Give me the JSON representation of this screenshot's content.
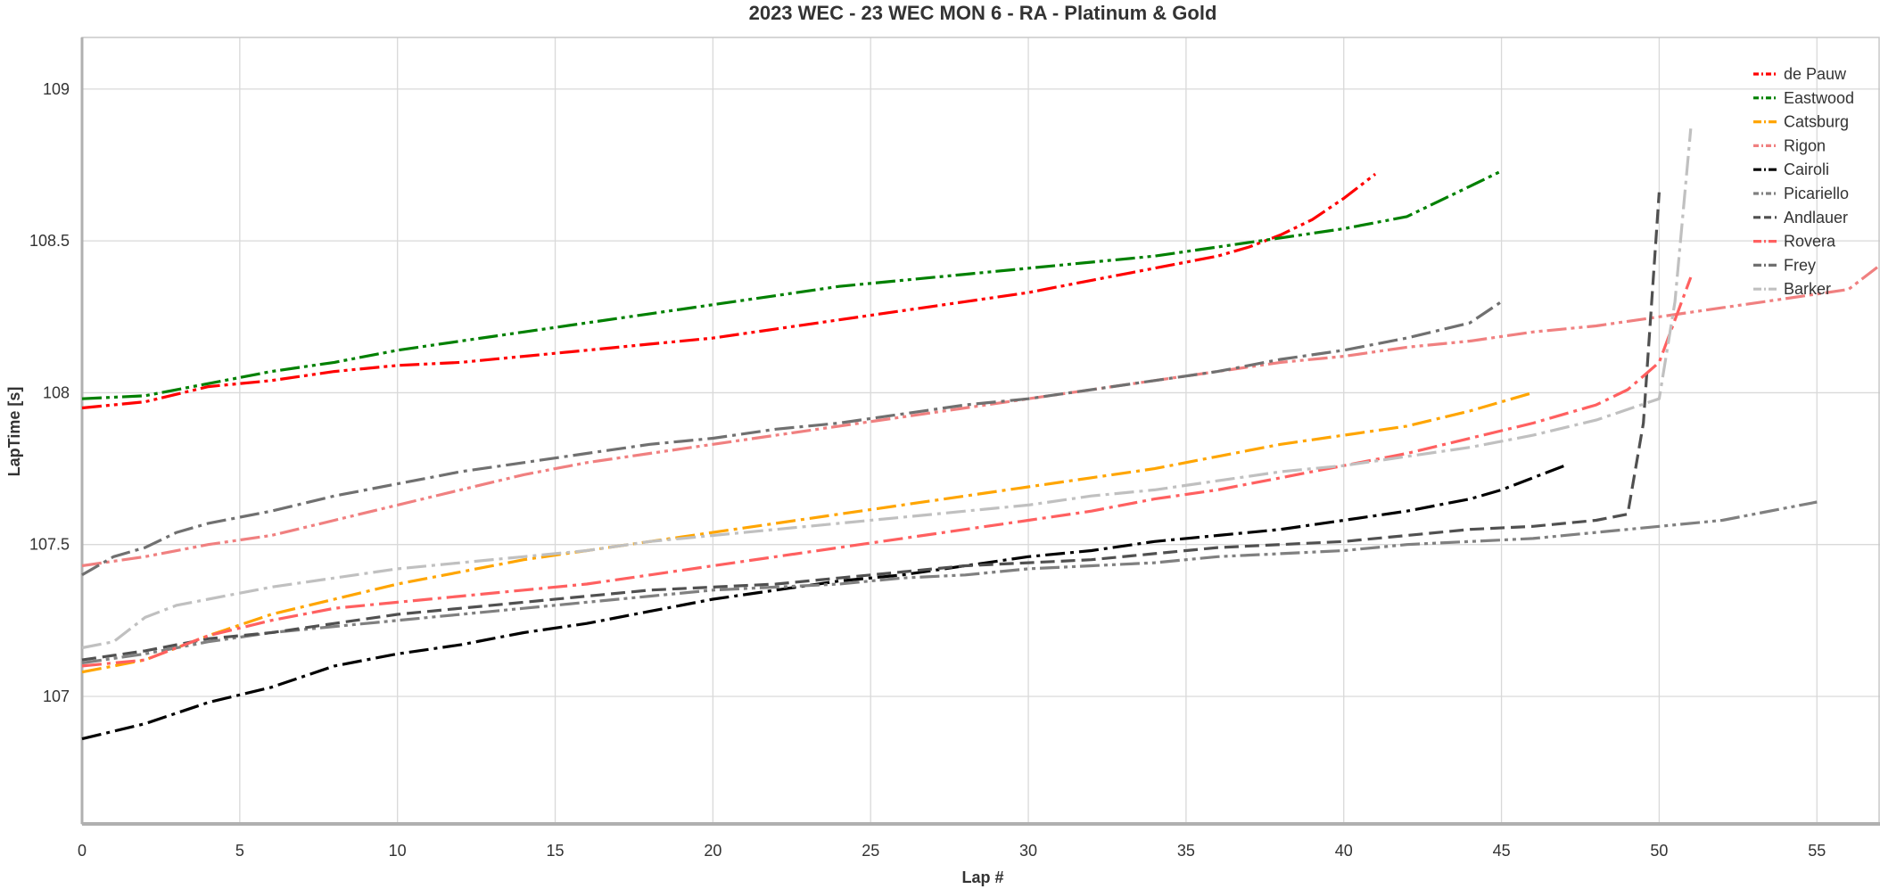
{
  "chart_data": {
    "type": "line",
    "title": "2023 WEC - 23 WEC MON 6 - RA -  Platinum & Gold",
    "xlabel": "Lap #",
    "ylabel": "LapTime [s]",
    "xlim": [
      0,
      57
    ],
    "ylim": [
      106.58,
      109.17
    ],
    "x_ticks": [
      0,
      5,
      10,
      15,
      20,
      25,
      30,
      35,
      40,
      45,
      50,
      55
    ],
    "y_ticks": [
      107,
      107.5,
      108,
      108.5,
      109
    ],
    "y_tick_labels": [
      "107",
      "107.5",
      "108",
      "108.5",
      "109"
    ],
    "grid": true,
    "legend_position": "top-right",
    "series": [
      {
        "name": "de Pauw",
        "color": "#ff0000",
        "dash": "dashdotdot",
        "points": [
          [
            0,
            107.95
          ],
          [
            2,
            107.97
          ],
          [
            4,
            108.02
          ],
          [
            6,
            108.04
          ],
          [
            8,
            108.07
          ],
          [
            10,
            108.09
          ],
          [
            12,
            108.1
          ],
          [
            14,
            108.12
          ],
          [
            16,
            108.14
          ],
          [
            18,
            108.16
          ],
          [
            20,
            108.18
          ],
          [
            22,
            108.21
          ],
          [
            24,
            108.24
          ],
          [
            26,
            108.27
          ],
          [
            28,
            108.3
          ],
          [
            30,
            108.33
          ],
          [
            32,
            108.37
          ],
          [
            34,
            108.41
          ],
          [
            36,
            108.45
          ],
          [
            37,
            108.48
          ],
          [
            38,
            108.52
          ],
          [
            39,
            108.57
          ],
          [
            40,
            108.64
          ],
          [
            41,
            108.72
          ]
        ]
      },
      {
        "name": "Eastwood",
        "color": "#008000",
        "dash": "dashdotdot",
        "points": [
          [
            0,
            107.98
          ],
          [
            2,
            107.99
          ],
          [
            4,
            108.03
          ],
          [
            6,
            108.07
          ],
          [
            8,
            108.1
          ],
          [
            10,
            108.14
          ],
          [
            12,
            108.17
          ],
          [
            14,
            108.2
          ],
          [
            16,
            108.23
          ],
          [
            18,
            108.26
          ],
          [
            20,
            108.29
          ],
          [
            22,
            108.32
          ],
          [
            24,
            108.35
          ],
          [
            26,
            108.37
          ],
          [
            28,
            108.39
          ],
          [
            30,
            108.41
          ],
          [
            32,
            108.43
          ],
          [
            34,
            108.45
          ],
          [
            36,
            108.48
          ],
          [
            38,
            108.51
          ],
          [
            40,
            108.54
          ],
          [
            42,
            108.58
          ],
          [
            43,
            108.63
          ],
          [
            44,
            108.68
          ],
          [
            45,
            108.73
          ]
        ]
      },
      {
        "name": "Catsburg",
        "color": "#ffa500",
        "dash": "dashdot",
        "points": [
          [
            0,
            107.08
          ],
          [
            2,
            107.12
          ],
          [
            4,
            107.2
          ],
          [
            6,
            107.27
          ],
          [
            8,
            107.32
          ],
          [
            10,
            107.37
          ],
          [
            12,
            107.41
          ],
          [
            14,
            107.45
          ],
          [
            16,
            107.48
          ],
          [
            18,
            107.51
          ],
          [
            20,
            107.54
          ],
          [
            22,
            107.57
          ],
          [
            24,
            107.6
          ],
          [
            26,
            107.63
          ],
          [
            28,
            107.66
          ],
          [
            30,
            107.69
          ],
          [
            32,
            107.72
          ],
          [
            34,
            107.75
          ],
          [
            36,
            107.79
          ],
          [
            38,
            107.83
          ],
          [
            40,
            107.86
          ],
          [
            42,
            107.89
          ],
          [
            44,
            107.94
          ],
          [
            46,
            108.0
          ]
        ]
      },
      {
        "name": "Rigon",
        "color": "#f08080",
        "dash": "dashdotdot",
        "points": [
          [
            0,
            107.43
          ],
          [
            2,
            107.46
          ],
          [
            4,
            107.5
          ],
          [
            6,
            107.53
          ],
          [
            8,
            107.58
          ],
          [
            10,
            107.63
          ],
          [
            12,
            107.68
          ],
          [
            14,
            107.73
          ],
          [
            16,
            107.77
          ],
          [
            18,
            107.8
          ],
          [
            20,
            107.83
          ],
          [
            22,
            107.86
          ],
          [
            24,
            107.89
          ],
          [
            26,
            107.92
          ],
          [
            28,
            107.95
          ],
          [
            30,
            107.98
          ],
          [
            32,
            108.01
          ],
          [
            34,
            108.04
          ],
          [
            36,
            108.07
          ],
          [
            38,
            108.1
          ],
          [
            40,
            108.12
          ],
          [
            42,
            108.15
          ],
          [
            44,
            108.17
          ],
          [
            46,
            108.2
          ],
          [
            48,
            108.22
          ],
          [
            50,
            108.25
          ],
          [
            52,
            108.28
          ],
          [
            54,
            108.31
          ],
          [
            56,
            108.34
          ],
          [
            57,
            108.42
          ]
        ]
      },
      {
        "name": "Cairoli",
        "color": "#000000",
        "dash": "dashdot",
        "points": [
          [
            0,
            106.86
          ],
          [
            2,
            106.91
          ],
          [
            4,
            106.98
          ],
          [
            6,
            107.03
          ],
          [
            8,
            107.1
          ],
          [
            10,
            107.14
          ],
          [
            12,
            107.17
          ],
          [
            14,
            107.21
          ],
          [
            16,
            107.24
          ],
          [
            18,
            107.28
          ],
          [
            20,
            107.32
          ],
          [
            22,
            107.35
          ],
          [
            24,
            107.38
          ],
          [
            26,
            107.4
          ],
          [
            28,
            107.43
          ],
          [
            30,
            107.46
          ],
          [
            32,
            107.48
          ],
          [
            34,
            107.51
          ],
          [
            36,
            107.53
          ],
          [
            38,
            107.55
          ],
          [
            40,
            107.58
          ],
          [
            42,
            107.61
          ],
          [
            44,
            107.65
          ],
          [
            45,
            107.68
          ],
          [
            46,
            107.72
          ],
          [
            47,
            107.76
          ]
        ]
      },
      {
        "name": "Picariello",
        "color": "#808080",
        "dash": "dashdotdot",
        "points": [
          [
            0,
            107.11
          ],
          [
            2,
            107.14
          ],
          [
            4,
            107.18
          ],
          [
            6,
            107.21
          ],
          [
            8,
            107.23
          ],
          [
            10,
            107.25
          ],
          [
            12,
            107.27
          ],
          [
            14,
            107.29
          ],
          [
            16,
            107.31
          ],
          [
            18,
            107.33
          ],
          [
            20,
            107.35
          ],
          [
            22,
            107.36
          ],
          [
            24,
            107.37
          ],
          [
            26,
            107.39
          ],
          [
            28,
            107.4
          ],
          [
            30,
            107.42
          ],
          [
            32,
            107.43
          ],
          [
            34,
            107.44
          ],
          [
            36,
            107.46
          ],
          [
            38,
            107.47
          ],
          [
            40,
            107.48
          ],
          [
            42,
            107.5
          ],
          [
            44,
            107.51
          ],
          [
            46,
            107.52
          ],
          [
            48,
            107.54
          ],
          [
            50,
            107.56
          ],
          [
            52,
            107.58
          ],
          [
            54,
            107.62
          ],
          [
            55,
            107.64
          ]
        ]
      },
      {
        "name": "Andlauer",
        "color": "#505050",
        "dash": "dash",
        "points": [
          [
            0,
            107.12
          ],
          [
            2,
            107.15
          ],
          [
            4,
            107.19
          ],
          [
            6,
            107.21
          ],
          [
            8,
            107.24
          ],
          [
            10,
            107.27
          ],
          [
            12,
            107.29
          ],
          [
            14,
            107.31
          ],
          [
            16,
            107.33
          ],
          [
            18,
            107.35
          ],
          [
            20,
            107.36
          ],
          [
            22,
            107.37
          ],
          [
            24,
            107.39
          ],
          [
            26,
            107.41
          ],
          [
            28,
            107.43
          ],
          [
            30,
            107.44
          ],
          [
            32,
            107.45
          ],
          [
            34,
            107.47
          ],
          [
            36,
            107.49
          ],
          [
            38,
            107.5
          ],
          [
            40,
            107.51
          ],
          [
            42,
            107.53
          ],
          [
            44,
            107.55
          ],
          [
            46,
            107.56
          ],
          [
            48,
            107.58
          ],
          [
            49,
            107.6
          ],
          [
            49.5,
            107.9
          ],
          [
            50,
            108.66
          ]
        ]
      },
      {
        "name": "Rovera",
        "color": "#ff6060",
        "dash": "dashdot",
        "points": [
          [
            0,
            107.1
          ],
          [
            2,
            107.12
          ],
          [
            4,
            107.2
          ],
          [
            6,
            107.25
          ],
          [
            8,
            107.29
          ],
          [
            10,
            107.31
          ],
          [
            12,
            107.33
          ],
          [
            14,
            107.35
          ],
          [
            16,
            107.37
          ],
          [
            18,
            107.4
          ],
          [
            20,
            107.43
          ],
          [
            22,
            107.46
          ],
          [
            24,
            107.49
          ],
          [
            26,
            107.52
          ],
          [
            28,
            107.55
          ],
          [
            30,
            107.58
          ],
          [
            32,
            107.61
          ],
          [
            34,
            107.65
          ],
          [
            36,
            107.68
          ],
          [
            38,
            107.72
          ],
          [
            40,
            107.76
          ],
          [
            42,
            107.8
          ],
          [
            44,
            107.85
          ],
          [
            46,
            107.9
          ],
          [
            48,
            107.96
          ],
          [
            49,
            108.01
          ],
          [
            50,
            108.1
          ],
          [
            51,
            108.38
          ]
        ]
      },
      {
        "name": "Frey",
        "color": "#707070",
        "dash": "dashdot",
        "points": [
          [
            0,
            107.4
          ],
          [
            1,
            107.46
          ],
          [
            2,
            107.49
          ],
          [
            3,
            107.54
          ],
          [
            4,
            107.57
          ],
          [
            6,
            107.61
          ],
          [
            8,
            107.66
          ],
          [
            10,
            107.7
          ],
          [
            12,
            107.74
          ],
          [
            14,
            107.77
          ],
          [
            16,
            107.8
          ],
          [
            18,
            107.83
          ],
          [
            20,
            107.85
          ],
          [
            22,
            107.88
          ],
          [
            24,
            107.9
          ],
          [
            26,
            107.93
          ],
          [
            28,
            107.96
          ],
          [
            30,
            107.98
          ],
          [
            32,
            108.01
          ],
          [
            34,
            108.04
          ],
          [
            36,
            108.07
          ],
          [
            38,
            108.11
          ],
          [
            40,
            108.14
          ],
          [
            42,
            108.18
          ],
          [
            44,
            108.23
          ],
          [
            45,
            108.3
          ]
        ]
      },
      {
        "name": "Barker",
        "color": "#c0c0c0",
        "dash": "dashdot",
        "points": [
          [
            0,
            107.16
          ],
          [
            1,
            107.18
          ],
          [
            2,
            107.26
          ],
          [
            3,
            107.3
          ],
          [
            4,
            107.32
          ],
          [
            6,
            107.36
          ],
          [
            8,
            107.39
          ],
          [
            10,
            107.42
          ],
          [
            12,
            107.44
          ],
          [
            14,
            107.46
          ],
          [
            16,
            107.48
          ],
          [
            18,
            107.51
          ],
          [
            20,
            107.53
          ],
          [
            22,
            107.55
          ],
          [
            24,
            107.57
          ],
          [
            26,
            107.59
          ],
          [
            28,
            107.61
          ],
          [
            30,
            107.63
          ],
          [
            32,
            107.66
          ],
          [
            34,
            107.68
          ],
          [
            36,
            107.71
          ],
          [
            38,
            107.74
          ],
          [
            40,
            107.76
          ],
          [
            42,
            107.79
          ],
          [
            44,
            107.82
          ],
          [
            46,
            107.86
          ],
          [
            48,
            107.91
          ],
          [
            50,
            107.98
          ],
          [
            50.5,
            108.3
          ],
          [
            51,
            108.87
          ]
        ]
      }
    ]
  }
}
